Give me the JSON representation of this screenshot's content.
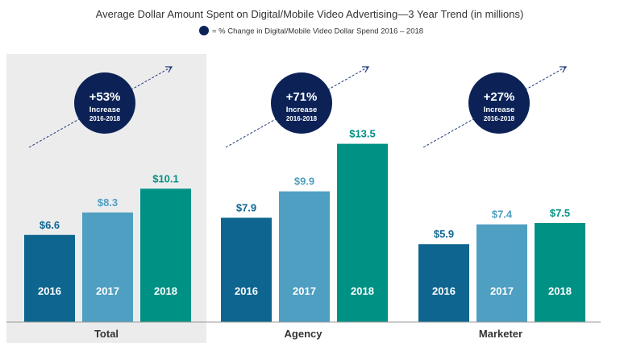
{
  "chart_data": {
    "type": "bar",
    "title": "Average Dollar Amount Spent  on Digital/Mobile Video Advertising—3 Year Trend (in millions)",
    "legend": {
      "label": "= % Change in Digital/Mobile Video Dollar Spend  2016 – 2018",
      "color": "#0c2257",
      "placement": "top-center"
    },
    "categories": [
      "Total",
      "Agency",
      "Marketer"
    ],
    "series": [
      {
        "name": "2016",
        "color": "#0e6690",
        "values": [
          6.6,
          7.9,
          5.9
        ],
        "labels": [
          "$6.6",
          "$7.9",
          "$5.9"
        ]
      },
      {
        "name": "2017",
        "color": "#4f9fc2",
        "values": [
          8.3,
          9.9,
          7.4
        ],
        "labels": [
          "$8.3",
          "$9.9",
          "$7.4"
        ]
      },
      {
        "name": "2018",
        "color": "#009185",
        "values": [
          10.1,
          13.5,
          7.5
        ],
        "labels": [
          "$10.1",
          "$13.5",
          "$7.5"
        ]
      }
    ],
    "annotations": [
      {
        "category": "Total",
        "change": "+53%",
        "text": "Increase",
        "range": "2016-2018"
      },
      {
        "category": "Agency",
        "change": "+71%",
        "text": "Increase",
        "range": "2016-2018"
      },
      {
        "category": "Marketer",
        "change": "+27%",
        "text": "Increase",
        "range": "2016-2018"
      }
    ],
    "highlighted_category": "Total",
    "ylim": [
      0,
      14
    ],
    "grid": false
  }
}
